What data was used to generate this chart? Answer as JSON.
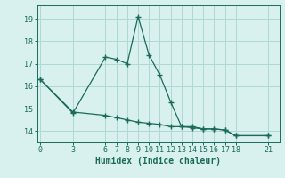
{
  "line1_x": [
    0,
    3,
    6,
    7,
    8,
    9,
    10,
    11,
    12,
    13,
    14,
    15,
    16,
    17,
    18,
    21
  ],
  "line1_y": [
    16.3,
    14.8,
    17.3,
    17.2,
    17.0,
    19.1,
    17.4,
    16.5,
    15.3,
    14.2,
    14.2,
    14.1,
    14.1,
    14.05,
    13.8,
    13.8
  ],
  "line2_x": [
    0,
    3,
    6,
    7,
    8,
    9,
    10,
    11,
    12,
    13,
    14,
    15,
    16,
    17,
    18,
    21
  ],
  "line2_y": [
    16.3,
    14.85,
    14.7,
    14.6,
    14.5,
    14.4,
    14.35,
    14.3,
    14.2,
    14.2,
    14.15,
    14.1,
    14.1,
    14.05,
    13.8,
    13.8
  ],
  "xticks": [
    0,
    3,
    6,
    7,
    8,
    9,
    10,
    11,
    12,
    13,
    14,
    15,
    16,
    17,
    18,
    21
  ],
  "yticks": [
    14,
    15,
    16,
    17,
    18,
    19
  ],
  "xlim": [
    -0.3,
    22.0
  ],
  "ylim": [
    13.5,
    19.6
  ],
  "xlabel": "Humidex (Indice chaleur)",
  "line_color": "#1a6b5a",
  "bg_color": "#d8f0ee",
  "grid_color": "#b0d8d4",
  "marker": "+",
  "marker_size": 4,
  "linewidth": 0.9,
  "xlabel_fontsize": 7,
  "tick_fontsize": 6
}
